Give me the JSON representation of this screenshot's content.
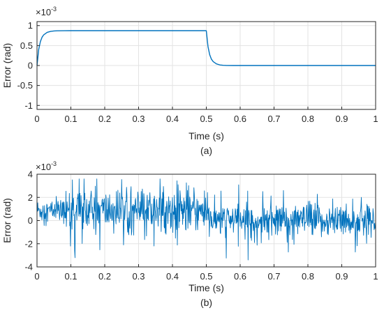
{
  "chart_data": [
    {
      "type": "line",
      "caption": "(a)",
      "xlabel": "Time (s)",
      "ylabel": "Error (rad)",
      "y_multiplier": "×10",
      "y_exponent": "-3",
      "xlim": [
        0,
        1
      ],
      "ylim": [
        -1.1,
        1.1
      ],
      "x_ticks": [
        "0",
        "0.1",
        "0.2",
        "0.3",
        "0.4",
        "0.5",
        "0.6",
        "0.7",
        "0.8",
        "0.9",
        "1"
      ],
      "y_ticks": [
        "-1",
        "-0.5",
        "0",
        "0.5",
        "1"
      ],
      "grid": true,
      "color": "#0072BD",
      "series": [
        {
          "x": [
            0,
            0.005,
            0.01,
            0.015,
            0.02,
            0.03,
            0.04,
            0.05,
            0.06,
            0.08,
            0.1,
            0.2,
            0.3,
            0.4,
            0.499,
            0.5,
            0.505,
            0.51,
            0.515,
            0.52,
            0.53,
            0.54,
            0.55,
            0.56,
            0.58,
            0.6,
            0.7,
            0.8,
            0.9,
            1.0
          ],
          "values": [
            0,
            0.4,
            0.6,
            0.71,
            0.77,
            0.83,
            0.855,
            0.865,
            0.87,
            0.872,
            0.873,
            0.873,
            0.873,
            0.873,
            0.873,
            0.87,
            0.47,
            0.27,
            0.16,
            0.1,
            0.04,
            0.015,
            0.006,
            0.002,
            0.0,
            0.0,
            0.0,
            0.0,
            0.0,
            0.0
          ]
        }
      ]
    },
    {
      "type": "line",
      "caption": "(b)",
      "xlabel": "Time (s)",
      "ylabel": "Error (rad)",
      "y_multiplier": "×10",
      "y_exponent": "-3",
      "xlim": [
        0,
        1
      ],
      "ylim": [
        -4,
        4
      ],
      "x_ticks": [
        "0",
        "0.1",
        "0.2",
        "0.3",
        "0.4",
        "0.5",
        "0.6",
        "0.7",
        "0.8",
        "0.9",
        "1"
      ],
      "y_ticks": [
        "-4",
        "-2",
        "0",
        "2",
        "4"
      ],
      "grid": true,
      "color": "#0072BD",
      "series": [
        {
          "x": [
            0,
            0.02,
            0.04,
            0.06,
            0.08,
            0.1,
            0.12,
            0.14,
            0.16,
            0.18,
            0.2,
            0.22,
            0.24,
            0.26,
            0.28,
            0.3,
            0.32,
            0.34,
            0.36,
            0.38,
            0.4,
            0.42,
            0.44,
            0.46,
            0.48,
            0.5,
            0.52,
            0.54,
            0.56,
            0.58,
            0.6,
            0.62,
            0.64,
            0.66,
            0.68,
            0.7,
            0.72,
            0.74,
            0.76,
            0.78,
            0.8,
            0.82,
            0.84,
            0.86,
            0.88,
            0.9,
            0.92,
            0.94,
            0.96,
            0.98,
            1.0
          ],
          "values": [
            0.5,
            1.8,
            -0.3,
            1.4,
            0.2,
            3.0,
            -1.2,
            2.4,
            0.0,
            2.6,
            -1.4,
            2.2,
            0.0,
            2.8,
            -1.0,
            2.4,
            -0.5,
            2.6,
            -0.8,
            2.2,
            3.2,
            -1.2,
            2.4,
            -0.6,
            2.8,
            3.2,
            -0.6,
            1.6,
            -1.8,
            1.8,
            -1.4,
            1.6,
            -1.6,
            1.2,
            -1.8,
            1.8,
            -1.2,
            1.6,
            -1.4,
            1.2,
            -1.2,
            1.6,
            -1.0,
            1.4,
            -1.6,
            1.2,
            -1.4,
            1.0,
            -1.8,
            1.2,
            -0.4
          ],
          "envelope": [
            {
              "range": [
                0.0,
                0.08
              ],
              "mean": 0.85,
              "amp": 1.1
            },
            {
              "range": [
                0.08,
                0.5
              ],
              "mean": 0.85,
              "amp": 2.0
            },
            {
              "range": [
                0.5,
                1.0
              ],
              "mean": 0.0,
              "amp": 1.5
            }
          ]
        }
      ]
    }
  ]
}
